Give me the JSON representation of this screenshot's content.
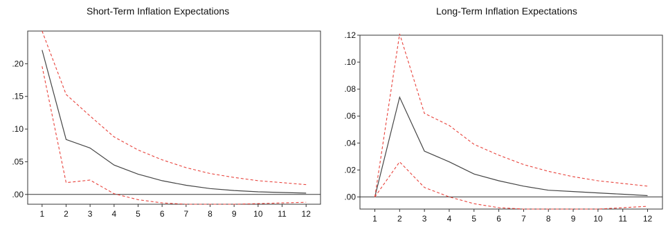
{
  "chart_data": [
    {
      "type": "line",
      "title": "Short-Term Inflation Expectations",
      "x": [
        1,
        2,
        3,
        4,
        5,
        6,
        7,
        8,
        9,
        10,
        11,
        12
      ],
      "ylim": [
        -0.015,
        0.25
      ],
      "yticks": [
        0.0,
        0.05,
        0.1,
        0.15,
        0.2
      ],
      "ytick_labels": [
        ".00",
        ".05",
        ".10",
        ".15",
        ".20"
      ],
      "xtick_labels": [
        "1",
        "2",
        "3",
        "4",
        "5",
        "6",
        "7",
        "8",
        "9",
        "10",
        "11",
        "12"
      ],
      "zero_line": true,
      "series": [
        {
          "role": "response",
          "color": "#444444",
          "dash": false,
          "values": [
            0.221,
            0.084,
            0.071,
            0.045,
            0.031,
            0.021,
            0.014,
            0.009,
            0.006,
            0.004,
            0.003,
            0.002
          ]
        },
        {
          "role": "upper-band",
          "color": "#e8413a",
          "dash": true,
          "values": [
            0.25,
            0.153,
            0.12,
            0.088,
            0.068,
            0.053,
            0.041,
            0.032,
            0.026,
            0.021,
            0.018,
            0.015
          ]
        },
        {
          "role": "lower-band",
          "color": "#e8413a",
          "dash": true,
          "values": [
            0.196,
            0.018,
            0.022,
            0.001,
            -0.008,
            -0.013,
            -0.015,
            -0.015,
            -0.015,
            -0.014,
            -0.013,
            -0.012
          ]
        }
      ]
    },
    {
      "type": "line",
      "title": "Long-Term Inflation Expectations",
      "x": [
        1,
        2,
        3,
        4,
        5,
        6,
        7,
        8,
        9,
        10,
        11,
        12
      ],
      "ylim": [
        -0.009,
        0.12
      ],
      "yticks": [
        0.0,
        0.02,
        0.04,
        0.06,
        0.08,
        0.1,
        0.12
      ],
      "ytick_labels": [
        ".00",
        ".02",
        ".04",
        ".06",
        ".08",
        ".10",
        ".12"
      ],
      "xtick_labels": [
        "1",
        "2",
        "3",
        "4",
        "5",
        "6",
        "7",
        "8",
        "9",
        "10",
        "11",
        "12"
      ],
      "zero_line": true,
      "series": [
        {
          "role": "response",
          "color": "#444444",
          "dash": false,
          "values": [
            0.0,
            0.074,
            0.034,
            0.026,
            0.017,
            0.012,
            0.008,
            0.005,
            0.004,
            0.003,
            0.002,
            0.001
          ]
        },
        {
          "role": "upper-band",
          "color": "#e8413a",
          "dash": true,
          "values": [
            0.0,
            0.121,
            0.062,
            0.053,
            0.039,
            0.031,
            0.024,
            0.019,
            0.015,
            0.012,
            0.01,
            0.008
          ]
        },
        {
          "role": "lower-band",
          "color": "#e8413a",
          "dash": true,
          "values": [
            0.0,
            0.026,
            0.007,
            0.0,
            -0.005,
            -0.008,
            -0.009,
            -0.009,
            -0.009,
            -0.009,
            -0.008,
            -0.007
          ]
        }
      ]
    }
  ]
}
